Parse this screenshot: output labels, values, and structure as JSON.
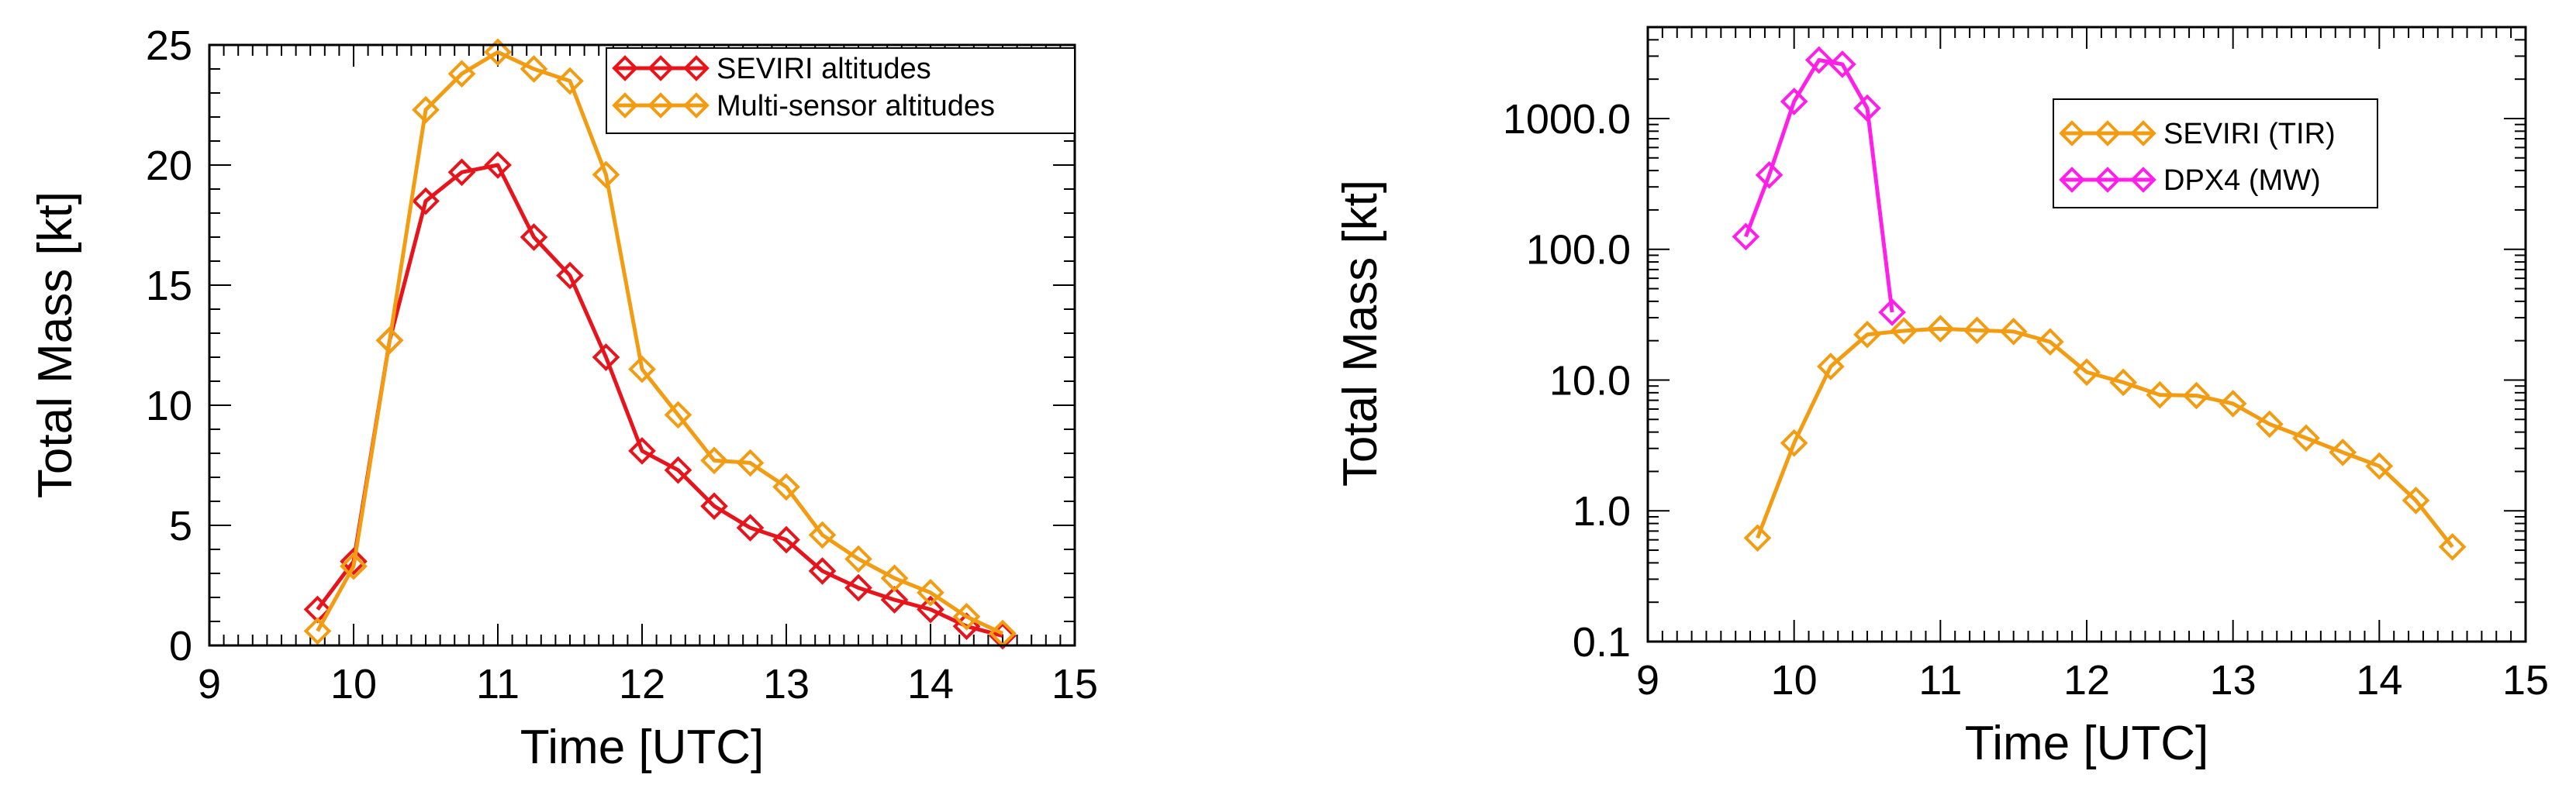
{
  "chart_data": [
    {
      "type": "line",
      "xlabel": "Time [UTC]",
      "ylabel": "Total Mass [kt]",
      "xlim": [
        9,
        15
      ],
      "ylim": [
        0,
        25
      ],
      "yscale": "linear",
      "xticks": [
        "9",
        "10",
        "11",
        "12",
        "13",
        "14",
        "15"
      ],
      "yticks": [
        "0",
        "5",
        "10",
        "15",
        "20",
        "25"
      ],
      "legend_position": "top-right",
      "series": [
        {
          "name": "SEVIRI altitudes",
          "color": "#e8141b",
          "marker": "diamond-open",
          "x": [
            9.75,
            10.0,
            10.25,
            10.5,
            10.75,
            11.0,
            11.25,
            11.5,
            11.75,
            12.0,
            12.25,
            12.5,
            12.75,
            13.0,
            13.25,
            13.5,
            13.75,
            14.0,
            14.25,
            14.5
          ],
          "y": [
            1.5,
            3.5,
            12.7,
            18.5,
            19.7,
            20.0,
            17.0,
            15.4,
            12.0,
            8.1,
            7.3,
            5.8,
            4.9,
            4.4,
            3.1,
            2.4,
            1.9,
            1.5,
            0.8,
            0.4
          ]
        },
        {
          "name": "Multi-sensor altitudes",
          "color": "#f39c12",
          "marker": "diamond-open",
          "x": [
            9.75,
            10.0,
            10.25,
            10.5,
            10.75,
            11.0,
            11.25,
            11.5,
            11.75,
            12.0,
            12.25,
            12.5,
            12.75,
            13.0,
            13.25,
            13.5,
            13.75,
            14.0,
            14.25,
            14.5
          ],
          "y": [
            0.6,
            3.3,
            12.7,
            22.3,
            23.8,
            24.7,
            24.0,
            23.5,
            19.6,
            11.5,
            9.6,
            7.7,
            7.6,
            6.6,
            4.6,
            3.6,
            2.8,
            2.2,
            1.2,
            0.5
          ]
        }
      ]
    },
    {
      "type": "line",
      "xlabel": "Time [UTC]",
      "ylabel": "Total Mass [kt]",
      "xlim": [
        9,
        15
      ],
      "ylim": [
        0.1,
        5000
      ],
      "yscale": "log",
      "xticks": [
        "9",
        "10",
        "11",
        "12",
        "13",
        "14",
        "15"
      ],
      "yticks": [
        "0.1",
        "1.0",
        "10.0",
        "100.0",
        "1000.0"
      ],
      "legend_position": "top-right",
      "series": [
        {
          "name": "SEVIRI (TIR)",
          "color": "#f39c12",
          "marker": "diamond-open",
          "x": [
            9.75,
            10.0,
            10.25,
            10.5,
            10.75,
            11.0,
            11.25,
            11.5,
            11.75,
            12.0,
            12.25,
            12.5,
            12.75,
            13.0,
            13.25,
            13.5,
            13.75,
            14.0,
            14.25,
            14.5
          ],
          "y": [
            0.62,
            3.3,
            12.7,
            22.3,
            23.8,
            24.7,
            24.0,
            23.5,
            19.6,
            11.5,
            9.6,
            7.7,
            7.6,
            6.6,
            4.6,
            3.6,
            2.8,
            2.2,
            1.2,
            0.53
          ]
        },
        {
          "name": "DPX4 (MW)",
          "color": "#ff1fe8",
          "marker": "diamond-open",
          "x": [
            9.67,
            9.83,
            10.0,
            10.17,
            10.33,
            10.5,
            10.67
          ],
          "y": [
            125,
            370,
            1350,
            2800,
            2600,
            1200,
            33
          ]
        }
      ]
    }
  ]
}
